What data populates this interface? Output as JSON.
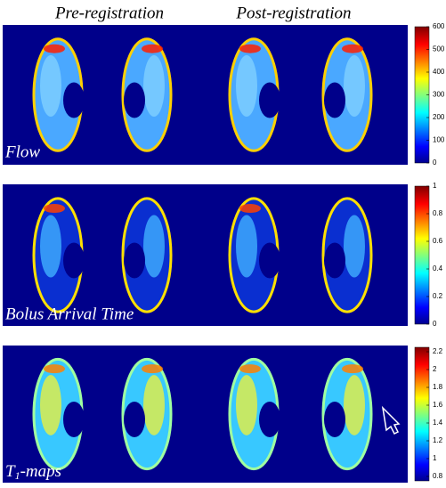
{
  "header": {
    "columns": [
      "Pre-registration",
      "Post-registration"
    ]
  },
  "rows": [
    {
      "label": "Flow",
      "colorbar": {
        "lim": [
          0,
          600
        ],
        "ticks": [
          0,
          100,
          200,
          300,
          400,
          500,
          600
        ]
      }
    },
    {
      "label": "Bolus Arrival Time",
      "colorbar": {
        "lim": [
          0,
          1
        ],
        "ticks": [
          0,
          0.2,
          0.4,
          0.6,
          0.8,
          1
        ]
      }
    },
    {
      "label": {
        "main": "T",
        "sub": "1",
        "rest": "-maps"
      },
      "colorbar": {
        "lim": [
          0.75,
          2.25
        ],
        "ticks": [
          0.8,
          1,
          1.2,
          1.4,
          1.6,
          1.8,
          2,
          2.2
        ]
      }
    }
  ]
}
